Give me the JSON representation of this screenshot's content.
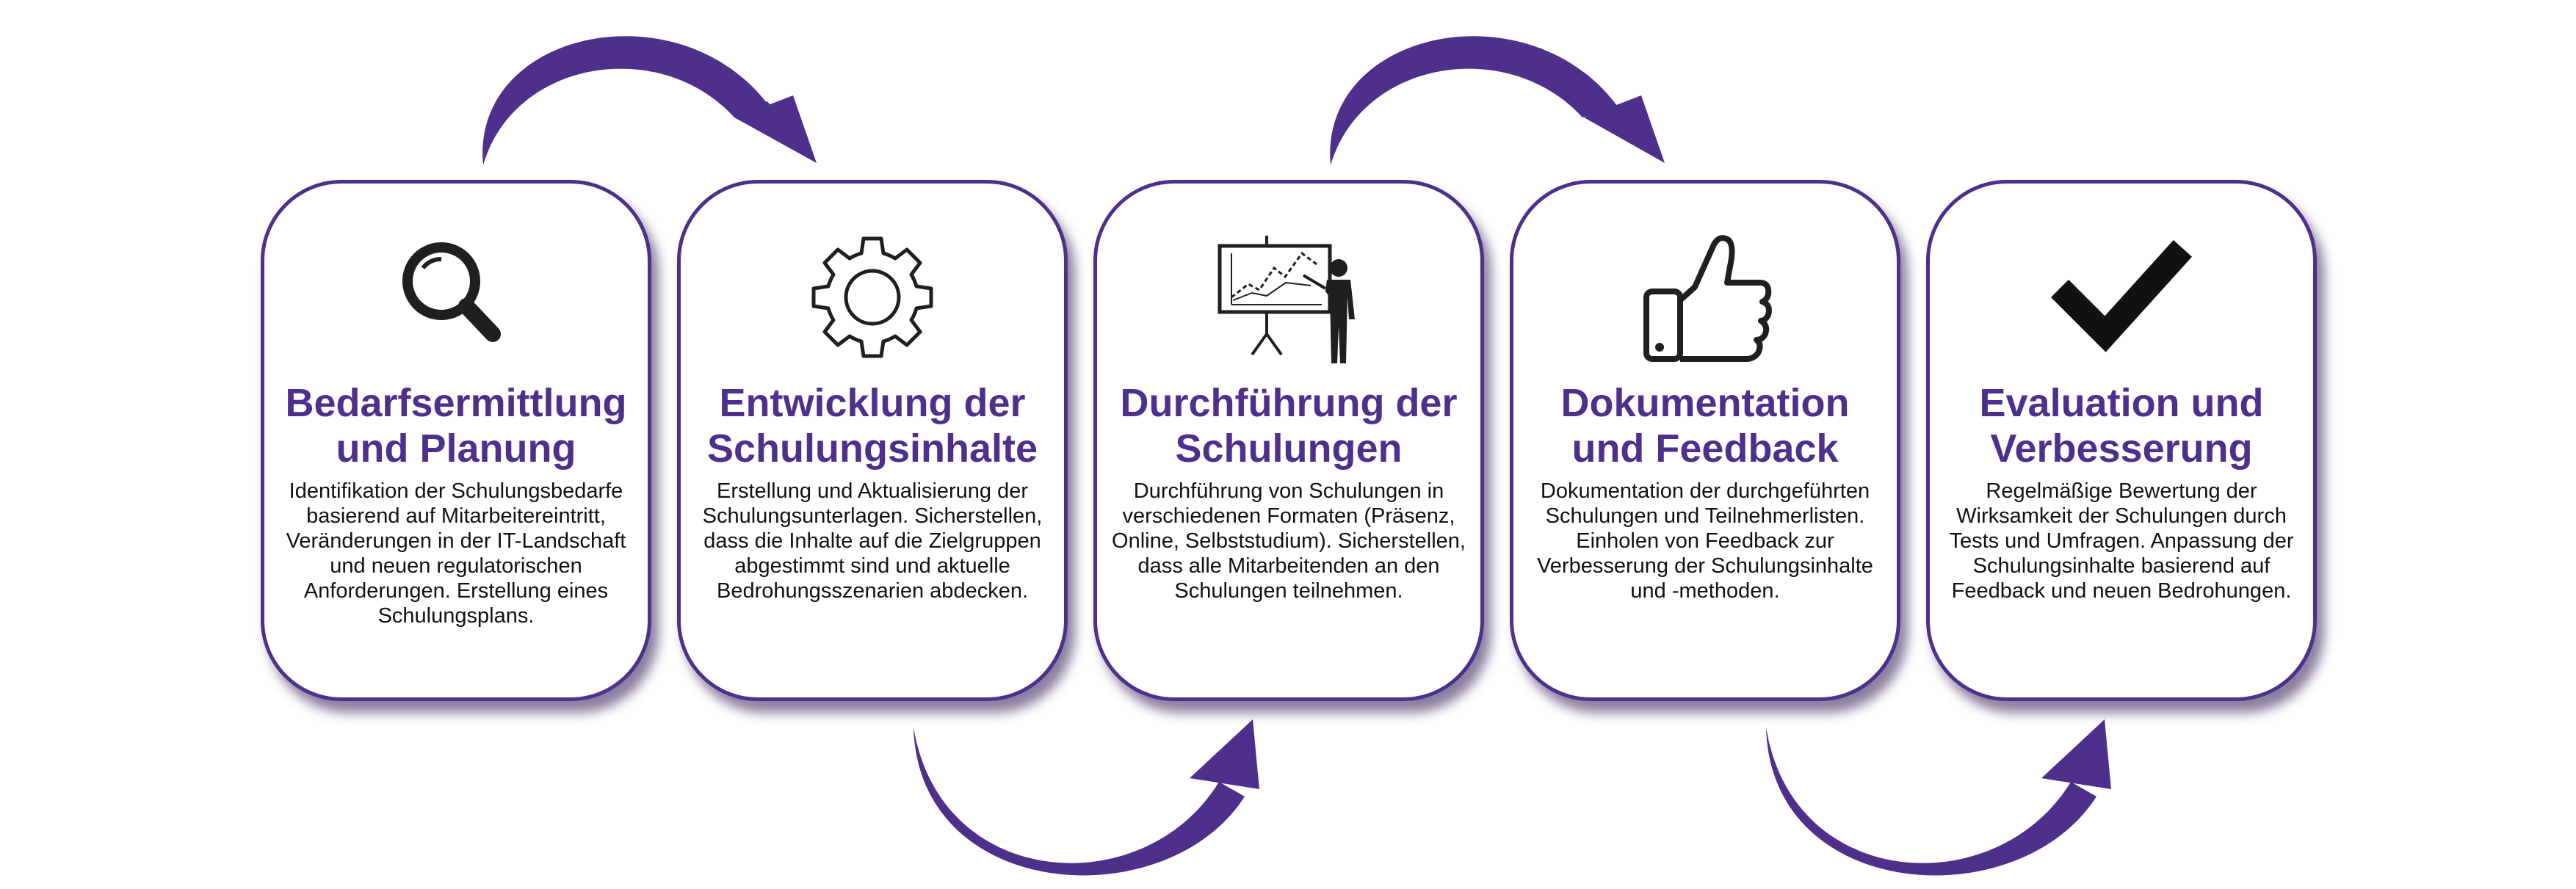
{
  "colors": {
    "accent": "#4e2f8c",
    "icon": "#1f1f1f",
    "text": "#111111",
    "background": "#ffffff"
  },
  "steps": [
    {
      "icon": "magnifier-icon",
      "title": "Bedarfsermittlung und Planung",
      "description": "Identifikation der Schulungsbedarfe basierend auf Mitarbeitereintritt, Veränderungen in der IT-Landschaft und neuen regulatorischen Anforderungen. Erstellung eines Schulungsplans."
    },
    {
      "icon": "gear-icon",
      "title": "Entwicklung der Schulungsinhalte",
      "description": "Erstellung und Aktualisierung der Schulungsunterlagen. Sicherstellen, dass die Inhalte auf die Zielgruppen abgestimmt sind und aktuelle Bedrohungsszenarien abdecken."
    },
    {
      "icon": "presentation-icon",
      "title": "Durchführung der Schulungen",
      "description": "Durchführung von Schulungen in verschiedenen Formaten (Präsenz, Online, Selbststudium). Sicherstellen, dass alle Mitarbeitenden an den Schulungen teilnehmen."
    },
    {
      "icon": "thumbs-up-icon",
      "title": "Dokumentation und Feedback",
      "description": "Dokumentation der durchgeführten Schulungen und Teilnehmerlisten. Einholen von Feedback zur Verbesserung der Schulungsinhalte und -methoden."
    },
    {
      "icon": "checkmark-icon",
      "title": "Evaluation und Verbesserung",
      "description": "Regelmäßige Bewertung der Wirksamkeit der Schulungen durch Tests und Umfragen. Anpassung der Schulungsinhalte basierend auf Feedback und neuen Bedrohungen."
    }
  ]
}
